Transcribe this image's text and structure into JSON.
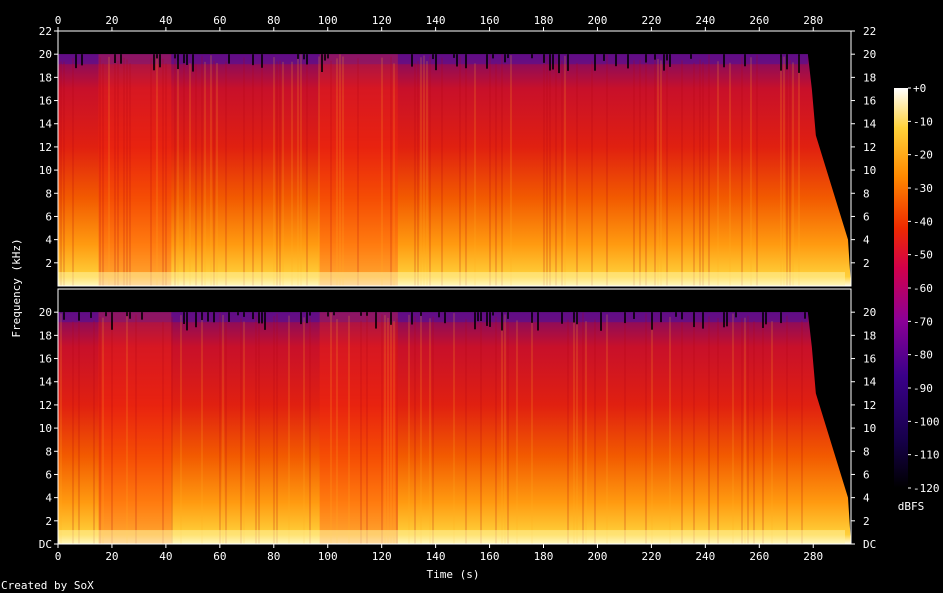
{
  "chart_data": {
    "type": "heatmap",
    "title": "",
    "xlabel": "Time (s)",
    "ylabel": "Frequency (kHz)",
    "xlim": [
      0,
      294
    ],
    "ylim_khz": [
      0,
      22
    ],
    "x_ticks": [
      0,
      20,
      40,
      60,
      80,
      100,
      120,
      140,
      160,
      180,
      200,
      220,
      240,
      260,
      280
    ],
    "y_ticks_top": [
      "2",
      "4",
      "6",
      "8",
      "10",
      "12",
      "14",
      "16",
      "18",
      "20",
      "22"
    ],
    "y_ticks_bottom": [
      "DC",
      "2",
      "4",
      "6",
      "8",
      "10",
      "12",
      "14",
      "16",
      "18",
      "20"
    ],
    "colorbar": {
      "label": "dBFS",
      "ticks": [
        "+0",
        "-10",
        "-20",
        "-30",
        "-40",
        "-50",
        "-60",
        "-70",
        "-80",
        "-90",
        "-100",
        "-110",
        "-120"
      ],
      "range_db": [
        -120,
        0
      ]
    },
    "channels": [
      {
        "name": "",
        "cutoff_khz": 20,
        "fade_start_s": 278,
        "fade_end_s": 294
      },
      {
        "name": "",
        "cutoff_khz": 20,
        "fade_start_s": 278,
        "fade_end_s": 294
      }
    ],
    "full_band_segments_s": [
      [
        15,
        42
      ],
      [
        97,
        126
      ]
    ],
    "colors": {
      "background": "#000000",
      "low_db": "#000000",
      "mid_low_db": "#3a0089",
      "mid_db": "#c40000",
      "high_db": "#ff8a00",
      "peak_db": "#ffffff"
    }
  },
  "footer": {
    "credit": "Created by SoX"
  }
}
